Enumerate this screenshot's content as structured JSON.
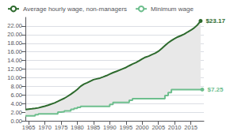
{
  "chart_data": {
    "type": "line",
    "legend": "upper left",
    "grid": true,
    "color": "#e8e8e8",
    "xlim": [
      1964,
      2019
    ],
    "xticks": [
      1965,
      1970,
      1975,
      1980,
      1985,
      1990,
      1995,
      2000,
      2005,
      2010,
      2015
    ],
    "ylim": [
      0,
      24
    ],
    "yticks": [
      {
        "value": 0.0,
        "label": "0.00"
      },
      {
        "value": 2.0,
        "label": "2.00"
      },
      {
        "value": 4.0,
        "label": "4.00"
      },
      {
        "value": 6.0,
        "label": "6.00"
      },
      {
        "value": 8.0,
        "label": "8.00"
      },
      {
        "value": 10.0,
        "label": "10.00"
      },
      {
        "value": 12.0,
        "label": "12.00"
      },
      {
        "value": 14.0,
        "label": "14.00"
      },
      {
        "value": 16.0,
        "label": "16.00"
      },
      {
        "value": 18.0,
        "label": "18.00"
      },
      {
        "value": 20.0,
        "label": "20.00"
      },
      {
        "value": 22.0,
        "label": "22.00"
      }
    ],
    "series": [
      {
        "name": "Average hourly wage, non-managers",
        "color": "#2d6a2d",
        "line_style": "solid",
        "x": [
          1964,
          1965,
          1966,
          1967,
          1968,
          1969,
          1970,
          1971,
          1972,
          1973,
          1974,
          1975,
          1976,
          1977,
          1978,
          1979,
          1980,
          1981,
          1982,
          1983,
          1984,
          1985,
          1986,
          1987,
          1988,
          1989,
          1990,
          1991,
          1992,
          1993,
          1994,
          1995,
          1996,
          1997,
          1998,
          1999,
          2000,
          2001,
          2002,
          2003,
          2004,
          2005,
          2006,
          2007,
          2008,
          2009,
          2010,
          2011,
          2012,
          2013,
          2014,
          2015,
          2016,
          2017,
          2018
        ],
        "values": [
          2.6,
          2.7,
          2.78,
          2.87,
          3.0,
          3.2,
          3.4,
          3.63,
          3.9,
          4.14,
          4.5,
          4.87,
          5.22,
          5.68,
          6.17,
          6.7,
          7.27,
          7.99,
          8.49,
          8.83,
          9.19,
          9.55,
          9.73,
          9.91,
          10.19,
          10.48,
          10.83,
          11.18,
          11.46,
          11.74,
          12.07,
          12.37,
          12.78,
          13.17,
          13.49,
          13.9,
          14.37,
          14.76,
          15.0,
          15.37,
          15.68,
          16.13,
          16.76,
          17.43,
          18.08,
          18.62,
          19.07,
          19.47,
          19.79,
          20.13,
          20.61,
          21.03,
          21.55,
          22.23,
          23.17
        ],
        "value_labels": [
          null,
          null,
          null,
          null,
          null,
          null,
          null,
          null,
          null,
          null,
          null,
          null,
          null,
          null,
          null,
          null,
          null,
          null,
          null,
          null,
          null,
          null,
          null,
          null,
          null,
          null,
          null,
          null,
          null,
          null,
          null,
          null,
          null,
          null,
          null,
          null,
          null,
          null,
          null,
          null,
          null,
          null,
          null,
          null,
          null,
          null,
          null,
          null,
          null,
          null,
          null,
          null,
          null,
          null,
          "$23.17"
        ]
      },
      {
        "name": "Minimum wage",
        "color": "#6dbe8d",
        "line_style": "step",
        "x": [
          1964,
          1967,
          1968,
          1974,
          1975,
          1976,
          1978,
          1979,
          1980,
          1981,
          1990,
          1991,
          1996,
          1997,
          2007,
          2008,
          2009,
          2018,
          2018.5
        ],
        "values": [
          1.15,
          1.4,
          1.6,
          2.0,
          2.1,
          2.3,
          2.65,
          2.9,
          3.1,
          3.35,
          3.8,
          4.25,
          4.75,
          5.15,
          5.85,
          6.55,
          7.25,
          7.25,
          7.25
        ],
        "value_labels": [
          null,
          null,
          null,
          null,
          null,
          null,
          null,
          null,
          null,
          null,
          null,
          null,
          null,
          null,
          null,
          null,
          null,
          null,
          "$7.25"
        ]
      }
    ]
  }
}
